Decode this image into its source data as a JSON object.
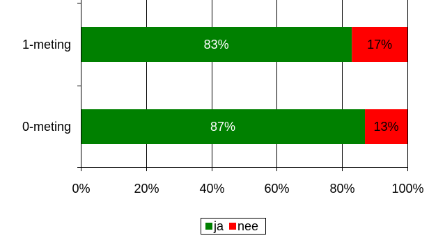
{
  "chart_data": {
    "type": "bar",
    "orientation": "horizontal",
    "stacked": true,
    "percent": true,
    "categories": [
      "1-meting",
      "0-meting"
    ],
    "series": [
      {
        "name": "ja",
        "values": [
          83,
          87
        ],
        "labels": [
          "83%",
          "87%"
        ],
        "color": "#008000",
        "label_color": "#ffffff"
      },
      {
        "name": "nee",
        "values": [
          17,
          13
        ],
        "labels": [
          "17%",
          "13%"
        ],
        "color": "#ff0000",
        "label_color": "#000000"
      }
    ],
    "xlim": [
      0,
      100
    ],
    "xticks": [
      0,
      20,
      40,
      60,
      80,
      100
    ],
    "xtick_labels": [
      "0%",
      "20%",
      "40%",
      "60%",
      "80%",
      "100%"
    ],
    "grid": "vertical",
    "legend_position": "bottom"
  }
}
